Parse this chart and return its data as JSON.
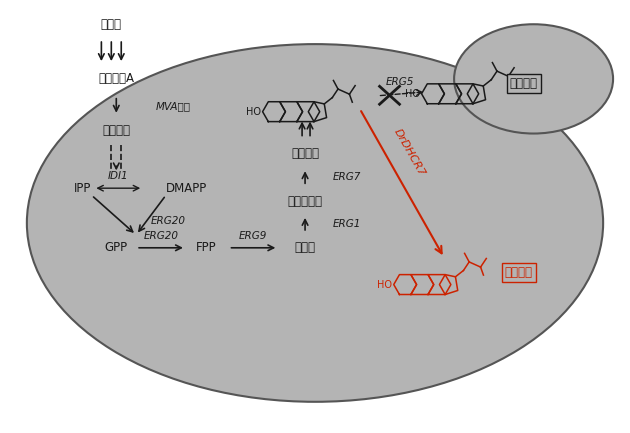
{
  "cell_color": "#b4b4b4",
  "cell_edge": "#555555",
  "black": "#1a1a1a",
  "red": "#cc2200",
  "white": "#ffffff",
  "labels": {
    "glucose": "葡萄糖",
    "acetyl_coa": "乙酰辅醁A",
    "mva": "MVA途径",
    "meva": "甲羟戊酸",
    "ipp": "IPP",
    "dmapp": "DMAPP",
    "gpp": "GPP",
    "fpp": "FPP",
    "squalene": "角鲨烯",
    "oxidosqualene": "环氧角鲨烯",
    "lanosterol": "羊毛甸醇",
    "ergosterol": "麦角固醇",
    "campesterol": "菜油甸醇",
    "idi1": "IDI1",
    "erg20a": "ERG20",
    "erg20b": "ERG20",
    "erg9": "ERG9",
    "erg1": "ERG1",
    "erg7": "ERG7",
    "erg5": "ERG5",
    "drdhcr7": "DrDHCR7"
  }
}
